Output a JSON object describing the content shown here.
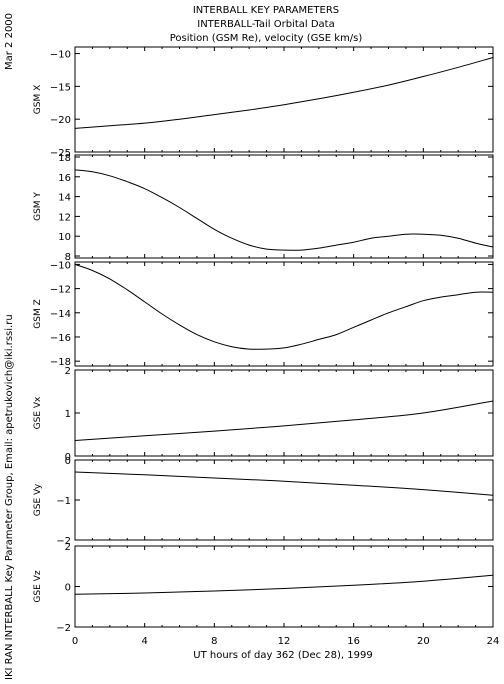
{
  "header": {
    "title_lines": [
      "INTERBALL KEY PARAMETERS",
      "INTERBALL-Tail Orbital Data",
      "Position (GSM Re), velocity (GSE km/s)"
    ],
    "date_stamp": "Mar  2 2000",
    "credit": "IKI RAN INTERBALL Key Parameter Group, Email: apetrukovich@iki.rssi.ru"
  },
  "chart_data": {
    "type": "line",
    "xlabel": "UT hours of day 362 (Dec 28), 1999",
    "xlim": [
      0,
      24
    ],
    "xticks": [
      0,
      4,
      8,
      12,
      16,
      20,
      24
    ],
    "panels": [
      {
        "ylabel": "GSM X",
        "ylim": [
          -25,
          -9
        ],
        "yticks": [
          -10,
          -15,
          -20,
          -25
        ],
        "x": [
          0,
          2,
          4,
          6,
          8,
          10,
          12,
          14,
          16,
          18,
          20,
          22,
          24
        ],
        "y": [
          -21.4,
          -21.0,
          -20.6,
          -20.0,
          -19.3,
          -18.6,
          -17.8,
          -16.9,
          -15.9,
          -14.8,
          -13.5,
          -12.1,
          -10.6
        ]
      },
      {
        "ylabel": "GSM Y",
        "ylim": [
          7.8,
          18.2
        ],
        "yticks": [
          8,
          10,
          12,
          14,
          16,
          18
        ],
        "x": [
          0,
          1,
          2,
          3,
          4,
          5,
          6,
          7,
          8,
          9,
          10,
          11,
          12,
          13,
          14,
          15,
          16,
          17,
          18,
          19,
          20,
          21,
          22,
          23,
          24
        ],
        "y": [
          16.7,
          16.5,
          16.1,
          15.5,
          14.8,
          13.9,
          12.9,
          11.8,
          10.7,
          9.8,
          9.1,
          8.7,
          8.6,
          8.6,
          8.8,
          9.1,
          9.4,
          9.8,
          10.0,
          10.2,
          10.2,
          10.1,
          9.8,
          9.3,
          8.9
        ]
      },
      {
        "ylabel": "GSM Z",
        "ylim": [
          -18.4,
          -9.8
        ],
        "yticks": [
          -10,
          -12,
          -14,
          -16,
          -18
        ],
        "x": [
          0,
          1,
          2,
          3,
          4,
          5,
          6,
          7,
          8,
          9,
          10,
          11,
          12,
          13,
          14,
          15,
          16,
          17,
          18,
          19,
          20,
          21,
          22,
          23,
          24
        ],
        "y": [
          -10.0,
          -10.5,
          -11.2,
          -12.1,
          -13.1,
          -14.1,
          -15.0,
          -15.8,
          -16.4,
          -16.8,
          -17.0,
          -17.0,
          -16.9,
          -16.6,
          -16.2,
          -15.8,
          -15.2,
          -14.6,
          -14.0,
          -13.5,
          -13.0,
          -12.7,
          -12.5,
          -12.3,
          -12.3
        ]
      },
      {
        "ylabel": "GSE Vx",
        "ylim": [
          0,
          2
        ],
        "yticks": [
          0,
          1,
          2
        ],
        "x": [
          0,
          4,
          8,
          12,
          16,
          20,
          24
        ],
        "y": [
          0.36,
          0.47,
          0.58,
          0.7,
          0.84,
          1.0,
          1.28
        ]
      },
      {
        "ylabel": "GSE Vy",
        "ylim": [
          -2,
          0
        ],
        "yticks": [
          0,
          -1,
          -2
        ],
        "x": [
          0,
          4,
          8,
          12,
          16,
          20,
          24
        ],
        "y": [
          -0.3,
          -0.37,
          -0.45,
          -0.53,
          -0.63,
          -0.74,
          -0.88
        ]
      },
      {
        "ylabel": "GSE Vz",
        "ylim": [
          -2,
          2
        ],
        "yticks": [
          2,
          0,
          -2
        ],
        "x": [
          0,
          4,
          8,
          12,
          16,
          20,
          24
        ],
        "y": [
          -0.38,
          -0.32,
          -0.22,
          -0.1,
          0.06,
          0.26,
          0.56
        ]
      }
    ]
  }
}
